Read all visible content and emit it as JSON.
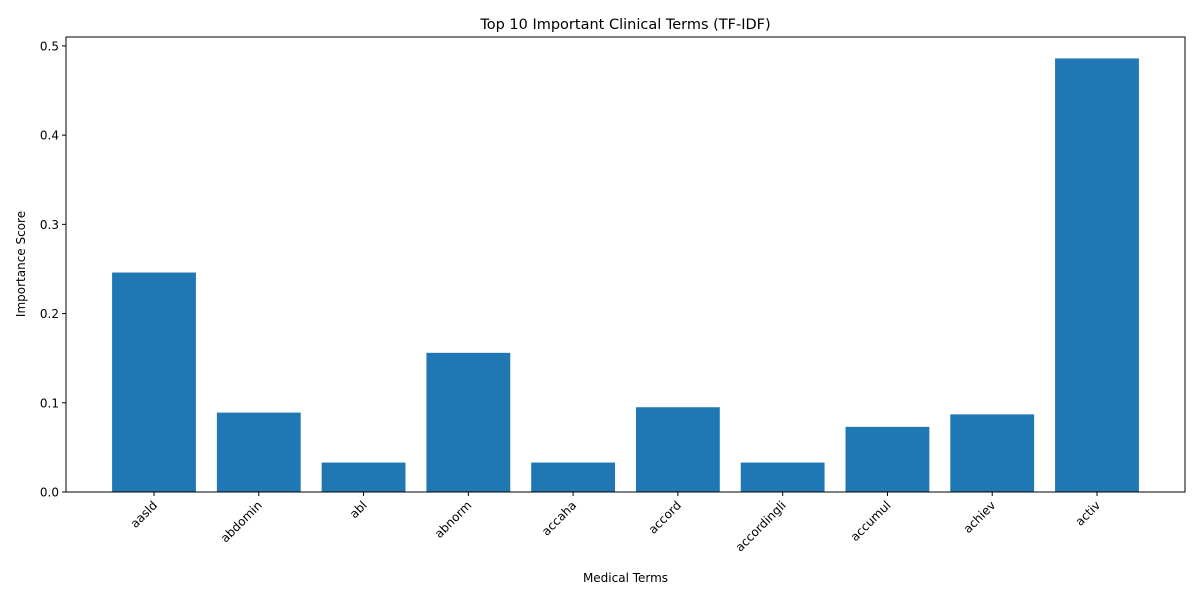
{
  "chart_data": {
    "type": "bar",
    "title": "Top 10 Important Clinical Terms (TF-IDF)",
    "xlabel": "Medical Terms",
    "ylabel": "Importance Score",
    "categories": [
      "aasld",
      "abdomin",
      "abl",
      "abnorm",
      "accaha",
      "accord",
      "accordingli",
      "accumul",
      "achiev",
      "activ"
    ],
    "values": [
      0.246,
      0.089,
      0.033,
      0.156,
      0.033,
      0.095,
      0.033,
      0.073,
      0.087,
      0.486
    ],
    "ylim": [
      0,
      0.51
    ],
    "yticks": [
      0.0,
      0.1,
      0.2,
      0.3,
      0.4,
      0.5
    ],
    "ytick_labels": [
      "0.0",
      "0.1",
      "0.2",
      "0.3",
      "0.4",
      "0.5"
    ],
    "grid": false,
    "bar_color": "#1f77b4"
  }
}
